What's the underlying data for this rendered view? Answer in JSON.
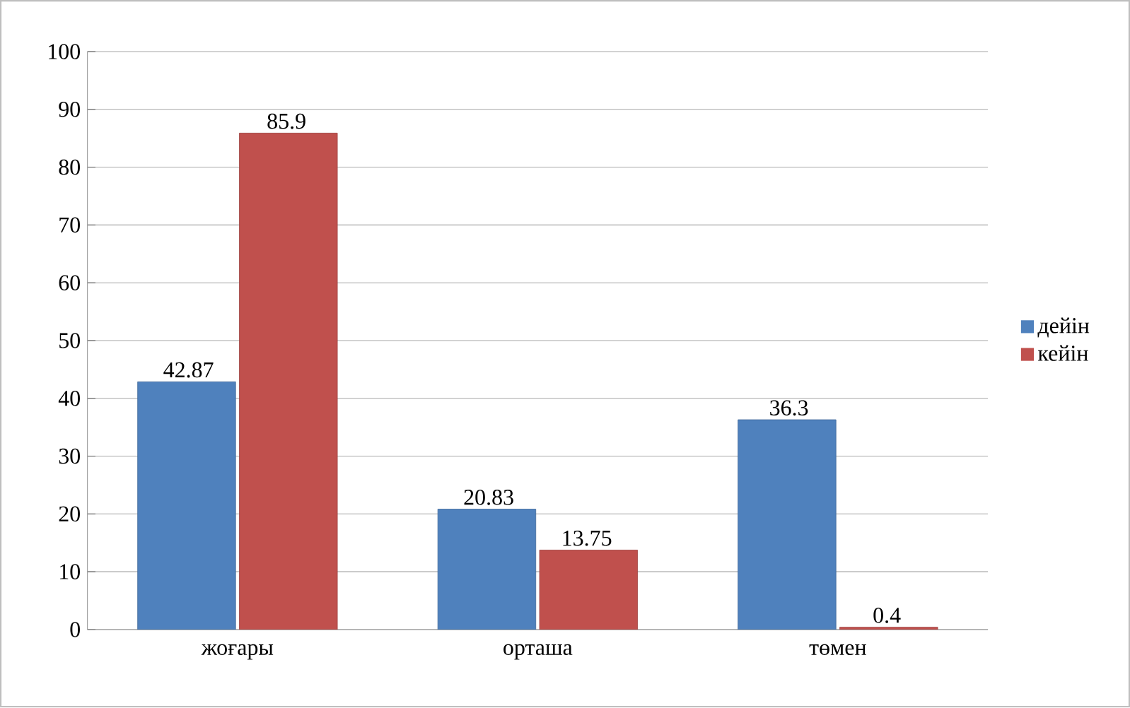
{
  "chart_data": {
    "type": "bar",
    "categories": [
      "жоғары",
      "орташа",
      "төмен"
    ],
    "series": [
      {
        "name": "дейін",
        "color": "#4f81bd",
        "values": [
          42.87,
          20.83,
          36.3
        ]
      },
      {
        "name": "кейін",
        "color": "#c0504d",
        "values": [
          85.9,
          13.75,
          0.4
        ]
      }
    ],
    "ylim": [
      0,
      100
    ],
    "yticks": [
      0,
      10,
      20,
      30,
      40,
      50,
      60,
      70,
      80,
      90,
      100
    ],
    "grid": "y",
    "legend": "right",
    "data_labels": true
  }
}
